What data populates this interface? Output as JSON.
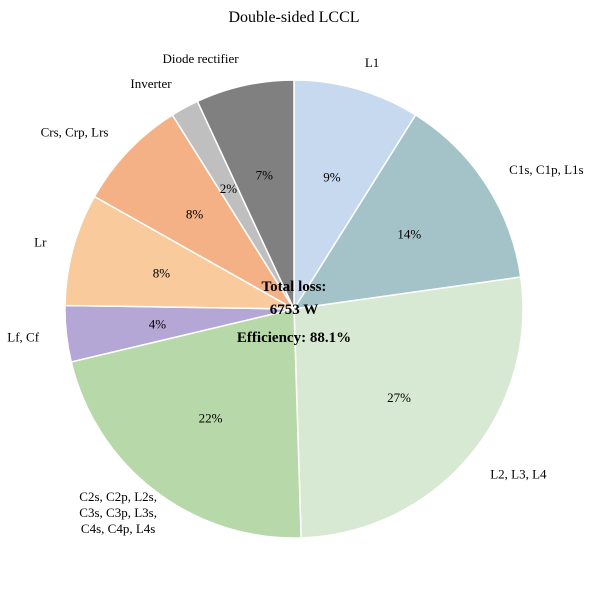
{
  "chart_data": {
    "type": "pie",
    "title": "Double-sided LCCL",
    "start": "12 o'clock",
    "direction": "clockwise",
    "slices": [
      {
        "labels": [
          "L1"
        ],
        "value": 9,
        "percent_label": "9%",
        "color": "#c6d9ef"
      },
      {
        "labels": [
          "C1s, C1p, L1s"
        ],
        "value": 14,
        "percent_label": "14%",
        "color": "#a3c3c8"
      },
      {
        "labels": [
          "L2, L3, L4"
        ],
        "value": 27,
        "percent_label": "27%",
        "color": "#d8e9d3"
      },
      {
        "labels": [
          "C2s, C2p, L2s,",
          "C3s, C3p, L3s,",
          "C4s, C4p, L4s"
        ],
        "value": 22,
        "percent_label": "22%",
        "color": "#b7d8a8"
      },
      {
        "labels": [
          "Lf, Cf"
        ],
        "value": 4,
        "percent_label": "4%",
        "color": "#b4a6d5"
      },
      {
        "labels": [
          "Lr"
        ],
        "value": 8,
        "percent_label": "8%",
        "color": "#f8ca9c"
      },
      {
        "labels": [
          "Crs, Crp, Lrs"
        ],
        "value": 8,
        "percent_label": "8%",
        "color": "#f4b186"
      },
      {
        "labels": [
          "Inverter"
        ],
        "value": 2,
        "percent_label": "2%",
        "color": "#bfbfbf"
      },
      {
        "labels": [
          "Diode rectifier"
        ],
        "value": 7,
        "percent_label": "7%",
        "color": "#808080"
      }
    ],
    "center_text": {
      "line1": "Total loss:",
      "line2": "6753 W",
      "line3": "Efficiency: 88.1%"
    }
  }
}
